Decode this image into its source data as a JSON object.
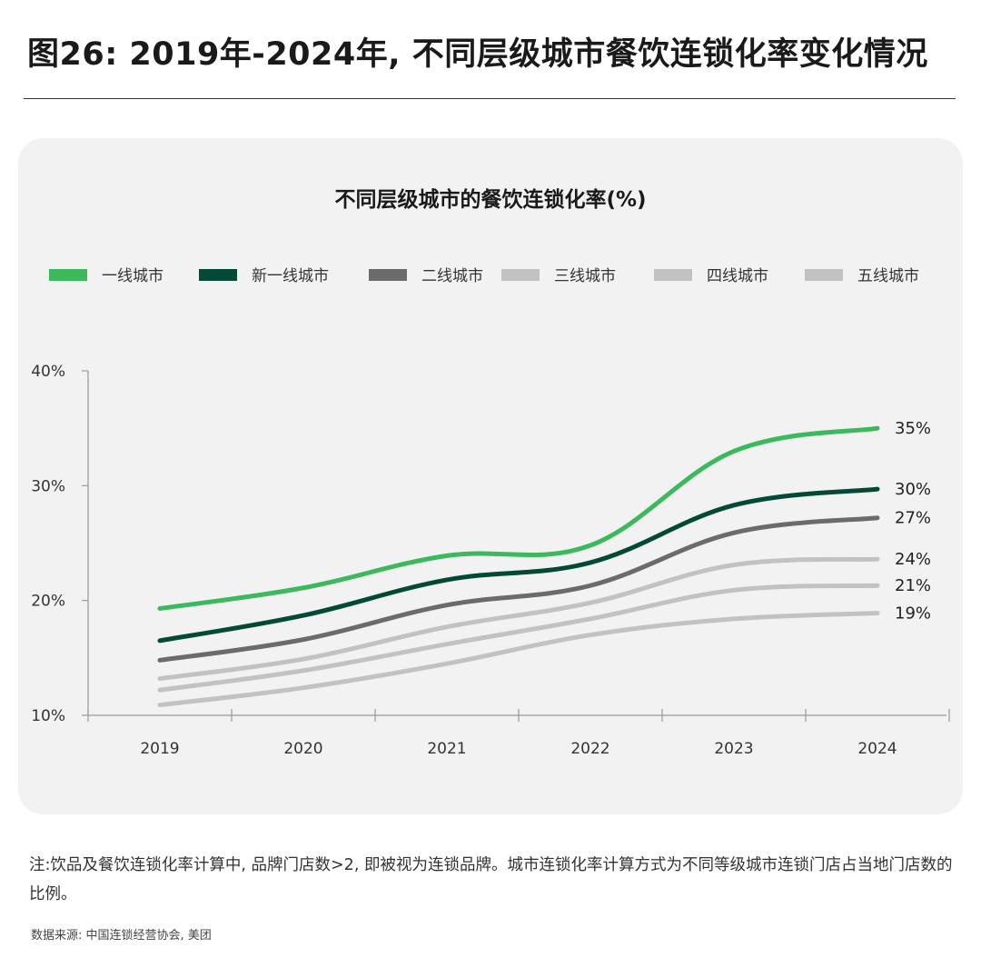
{
  "figure_title": "图26: 2019年-2024年, 不同层级城市餐饮连锁化率变化情况",
  "note": "注:饮品及餐饮连锁化率计算中, 品牌门店数>2, 即被视为连锁品牌。城市连锁化率计算方式为不同等级城市连锁门店占当地门店数的比例。",
  "source": "数据来源: 中国连锁经营协会, 美团",
  "chart_data": {
    "type": "line",
    "title": "不同层级城市的餐饮连锁化率(%)",
    "categories": [
      "2019",
      "2020",
      "2021",
      "2022",
      "2023",
      "2024"
    ],
    "ylim": [
      10,
      40
    ],
    "yticks": [
      10,
      20,
      30,
      40
    ],
    "ytick_labels": [
      "10%",
      "20%",
      "30%",
      "40%"
    ],
    "legend_position": "top",
    "grid": false,
    "series": [
      {
        "name": "一线城市",
        "color": "#3cb95c",
        "values": [
          19.3,
          21.1,
          23.9,
          24.8,
          33.0,
          35.0
        ],
        "end_label": "35%"
      },
      {
        "name": "新一线城市",
        "color": "#024a36",
        "values": [
          16.5,
          18.7,
          21.8,
          23.3,
          28.3,
          29.7
        ],
        "end_label": "30%"
      },
      {
        "name": "二线城市",
        "color": "#6b6b6b",
        "values": [
          14.8,
          16.6,
          19.6,
          21.3,
          25.9,
          27.2
        ],
        "end_label": "27%"
      },
      {
        "name": "三线城市",
        "color": "#c2c2c2",
        "values": [
          13.2,
          14.9,
          17.7,
          19.8,
          23.1,
          23.6
        ],
        "end_label": "24%"
      },
      {
        "name": "四线城市",
        "color": "#c2c2c2",
        "values": [
          12.2,
          13.9,
          16.2,
          18.4,
          20.9,
          21.3
        ],
        "end_label": "21%"
      },
      {
        "name": "五线城市",
        "color": "#c2c2c2",
        "values": [
          10.9,
          12.4,
          14.5,
          17.0,
          18.4,
          18.9
        ],
        "end_label": "19%"
      }
    ]
  }
}
